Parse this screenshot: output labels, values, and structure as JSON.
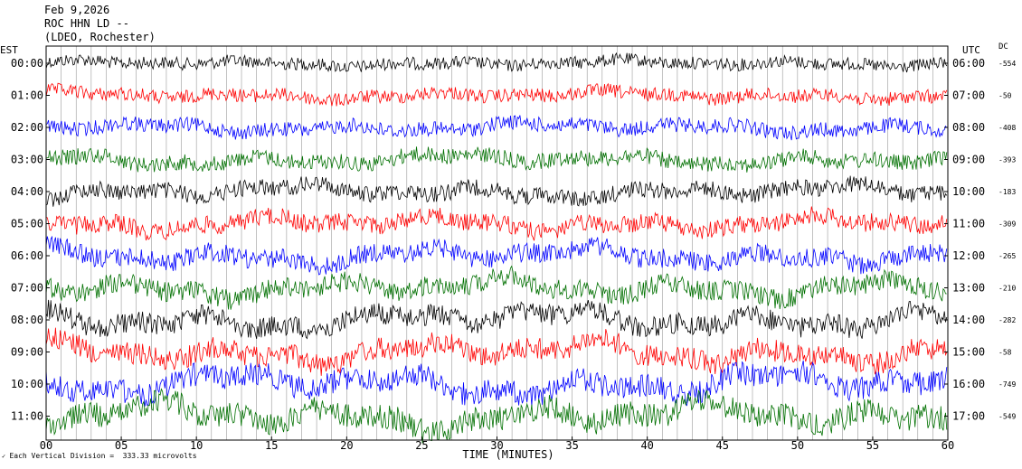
{
  "header": {
    "date": "Feb 9,2026",
    "station": "ROC HHN LD --",
    "network": "(LDEO, Rochester)"
  },
  "left_axis_title": "EST",
  "right_axis_title": "UTC",
  "dc_title": "DC",
  "footer_note": "Each Vertical Division =  333.33 microvolts",
  "chart_data": {
    "type": "line",
    "title": "Feb 9,2026",
    "xlabel": "TIME (MINUTES)",
    "ylabel": "",
    "xlim": [
      0,
      60
    ],
    "x_ticks": [
      "00",
      "05",
      "10",
      "15",
      "20",
      "25",
      "30",
      "35",
      "40",
      "45",
      "50",
      "55",
      "60"
    ],
    "grid": true,
    "trace_colors": [
      "#000000",
      "#ff0000",
      "#0000ff",
      "#007000"
    ],
    "rows": [
      {
        "est": "00:00",
        "utc": "06:00",
        "dc": "-554"
      },
      {
        "est": "01:00",
        "utc": "07:00",
        "dc": "-50"
      },
      {
        "est": "02:00",
        "utc": "08:00",
        "dc": "-408"
      },
      {
        "est": "03:00",
        "utc": "09:00",
        "dc": "-393"
      },
      {
        "est": "04:00",
        "utc": "10:00",
        "dc": "-183"
      },
      {
        "est": "05:00",
        "utc": "11:00",
        "dc": "-309"
      },
      {
        "est": "06:00",
        "utc": "12:00",
        "dc": "-265"
      },
      {
        "est": "07:00",
        "utc": "13:00",
        "dc": "-210"
      },
      {
        "est": "08:00",
        "utc": "14:00",
        "dc": "-282"
      },
      {
        "est": "09:00",
        "utc": "15:00",
        "dc": "-58"
      },
      {
        "est": "10:00",
        "utc": "16:00",
        "dc": "-749"
      },
      {
        "est": "11:00",
        "utc": "17:00",
        "dc": "-549"
      }
    ]
  }
}
